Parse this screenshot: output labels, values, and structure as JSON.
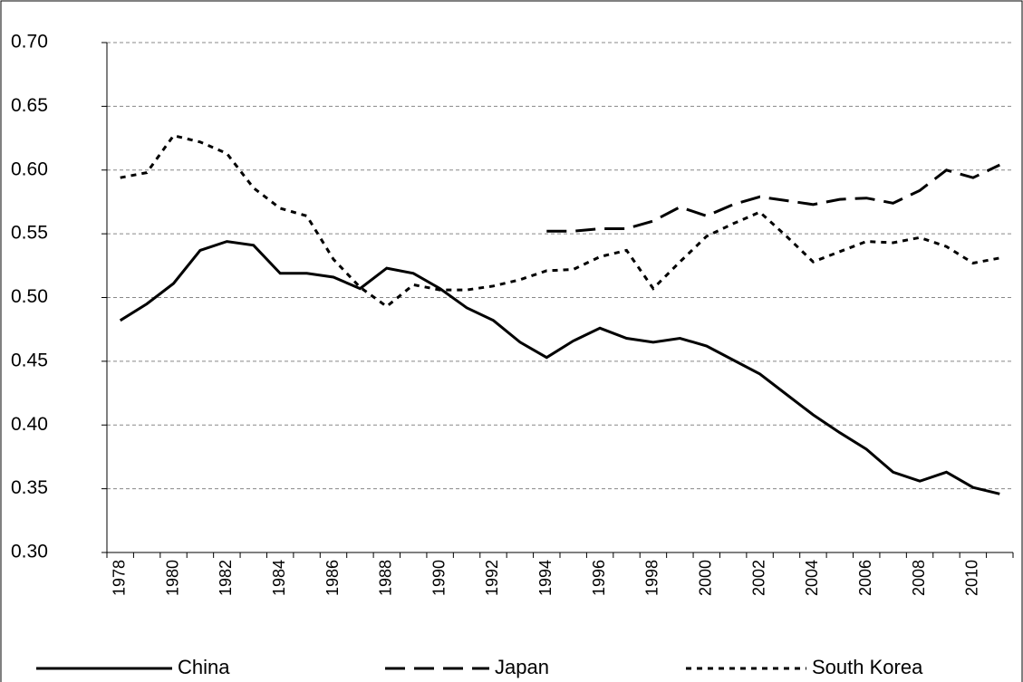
{
  "chart_data": {
    "type": "line",
    "categories": [
      "1978",
      null,
      "1980",
      null,
      "1982",
      null,
      "1984",
      null,
      "1986",
      null,
      "1988",
      null,
      "1990",
      null,
      "1992",
      null,
      "1994",
      null,
      "1996",
      null,
      "1998",
      null,
      "2000",
      null,
      "2002",
      null,
      "2004",
      null,
      "2006",
      null,
      "2008",
      null,
      "2010",
      null
    ],
    "series": [
      {
        "name": "China",
        "color": "#000000",
        "dash": "solid",
        "values": [
          0.482,
          0.495,
          0.511,
          0.537,
          0.544,
          0.541,
          0.519,
          0.519,
          0.516,
          0.507,
          0.523,
          0.519,
          0.507,
          0.492,
          0.482,
          0.465,
          0.453,
          0.466,
          0.476,
          0.468,
          0.465,
          0.468,
          0.462,
          0.451,
          0.44,
          0.424,
          0.408,
          0.394,
          0.381,
          0.363,
          0.356,
          0.363,
          0.351,
          0.346
        ]
      },
      {
        "name": "Japan",
        "color": "#000000",
        "dash": "long-dash",
        "values": [
          null,
          null,
          null,
          null,
          null,
          null,
          null,
          null,
          null,
          null,
          null,
          null,
          null,
          null,
          null,
          null,
          0.552,
          0.552,
          0.554,
          0.554,
          0.56,
          0.571,
          0.564,
          0.573,
          0.579,
          0.576,
          0.573,
          0.577,
          0.578,
          0.574,
          0.584,
          0.6,
          0.594,
          0.604
        ]
      },
      {
        "name": "South Korea",
        "color": "#000000",
        "dash": "short-dash",
        "values": [
          0.594,
          0.598,
          0.627,
          0.622,
          0.613,
          0.586,
          0.57,
          0.564,
          0.53,
          0.508,
          0.493,
          0.51,
          0.506,
          0.506,
          0.509,
          0.514,
          0.521,
          0.522,
          0.532,
          0.537,
          0.507,
          0.528,
          0.548,
          0.558,
          0.567,
          0.548,
          0.528,
          0.536,
          0.544,
          0.543,
          0.547,
          0.54,
          0.527,
          0.531
        ]
      }
    ],
    "ylim": [
      0.3,
      0.7
    ],
    "yticks": [
      {
        "value": 0.3,
        "label": "0.30"
      },
      {
        "value": 0.35,
        "label": "0.35"
      },
      {
        "value": 0.4,
        "label": "0.40"
      },
      {
        "value": 0.45,
        "label": "0.45"
      },
      {
        "value": 0.5,
        "label": "0.50"
      },
      {
        "value": 0.55,
        "label": "0.55"
      },
      {
        "value": 0.6,
        "label": "0.60"
      },
      {
        "value": 0.65,
        "label": "0.65"
      },
      {
        "value": 0.7,
        "label": "0.70"
      }
    ],
    "grid": true,
    "legend": "bottom"
  }
}
